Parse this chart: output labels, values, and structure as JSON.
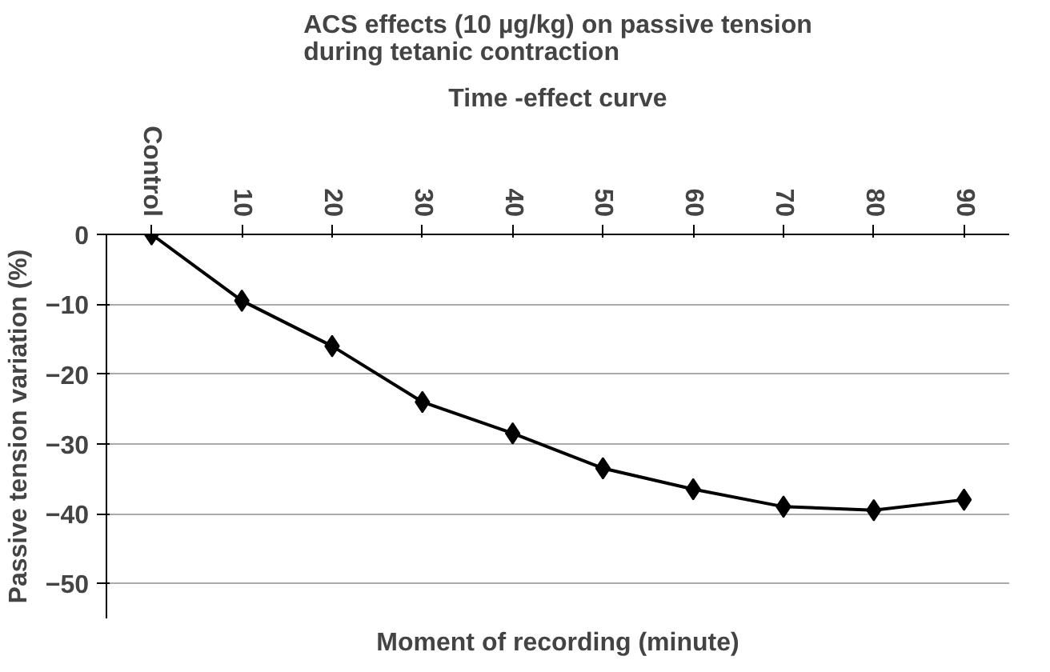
{
  "chart_data": {
    "type": "line",
    "title": "ACS effects (10 µg/kg) on passive tension\nduring tetanic contraction",
    "subtitle": "Time -effect curve",
    "xlabel": "Moment of recording (minute)",
    "ylabel": "Passive tension variation (%)",
    "categories": [
      "Control",
      "10",
      "20",
      "30",
      "40",
      "50",
      "60",
      "70",
      "80",
      "90"
    ],
    "series": [
      {
        "color": "#000000",
        "values": [
          0,
          -9.5,
          -16,
          -24,
          -28.5,
          -33.5,
          -36.5,
          -39,
          -39.5,
          -38
        ]
      }
    ],
    "ylim": [
      -55,
      0
    ],
    "yticks": [
      0,
      -10,
      -20,
      -30,
      -40,
      -50
    ],
    "grid": "y",
    "marker": "diamond",
    "line_style": "solid"
  }
}
